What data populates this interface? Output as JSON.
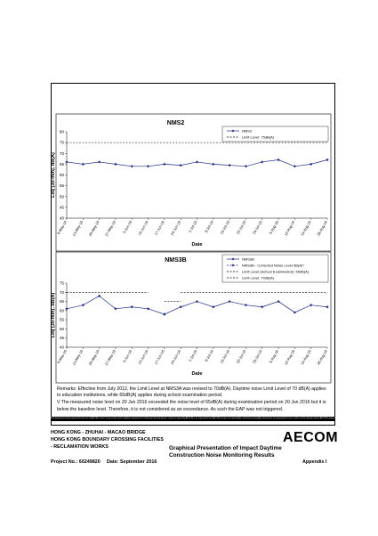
{
  "chart_data": [
    {
      "type": "line",
      "title": "NMS2",
      "x_label": "Date",
      "y_label": "Leq (30-min), dB(A)",
      "categories": [
        "6-May-16",
        "13-May-16",
        "20-May-16",
        "27-May-16",
        "3-Jun-16",
        "10-Jun-16",
        "17-Jun-16",
        "24-Jun-16",
        "1-Jul-16",
        "8-Jul-16",
        "15-Jul-16",
        "22-Jul-16",
        "29-Jul-16",
        "5-Aug-16",
        "12-Aug-16",
        "19-Aug-16",
        "26-Aug-16"
      ],
      "series": [
        {
          "name": "NMS2",
          "color": "#1f2a8a",
          "dashed": false,
          "marker": true,
          "values": [
            66,
            65,
            66,
            65,
            64,
            64,
            65,
            64.5,
            66,
            65,
            64.5,
            64,
            66,
            67,
            64,
            65,
            67
          ]
        },
        {
          "name": "Limit Level: 75dB(A)",
          "color": "#000000",
          "dashed": true,
          "marker": false,
          "values": [
            75,
            75,
            75,
            75,
            75,
            75,
            75,
            75,
            75,
            75,
            75,
            75,
            75,
            75,
            75,
            75,
            75
          ]
        }
      ],
      "ylim": [
        40,
        80
      ],
      "yticks": [
        40,
        45,
        50,
        55,
        60,
        65,
        70,
        75,
        80
      ]
    },
    {
      "type": "line",
      "title": "NMS3B",
      "x_label": "Date",
      "y_label": "Leq (30-min), dB(A)",
      "categories": [
        "6-May-16",
        "13-May-16",
        "20-May-16",
        "27-May-16",
        "3-Jun-16",
        "10-Jun-16",
        "17-Jun-16",
        "24-Jun-16",
        "1-Jul-16",
        "8-Jul-16",
        "15-Jul-16",
        "22-Jul-16",
        "29-Jul-16",
        "5-Aug-16",
        "12-Aug-16",
        "19-Aug-16",
        "26-Aug-16"
      ],
      "series": [
        {
          "name": "NMS3B",
          "color": "#1f2a8a",
          "dashed": false,
          "marker": true,
          "values": [
            61,
            63,
            68,
            61,
            62,
            61,
            58,
            62,
            65,
            62,
            65,
            63,
            62,
            65,
            59,
            63,
            62
          ]
        },
        {
          "name": "NMS3B - Corrected Noise Level dB(A)*",
          "color": "#1f2a8a",
          "dashed": true,
          "marker": true,
          "values": [
            null,
            null,
            null,
            null,
            null,
            null,
            58,
            null,
            null,
            null,
            null,
            null,
            null,
            null,
            null,
            null,
            null
          ]
        },
        {
          "name": "Limit Level (School Examination): 65dB(A)",
          "color": "#000000",
          "dashed": true,
          "marker": false,
          "values": [
            null,
            null,
            null,
            null,
            null,
            null,
            65,
            65,
            null,
            null,
            null,
            null,
            null,
            null,
            null,
            null,
            null
          ]
        },
        {
          "name": "Limit Level: 70dB(A)",
          "color": "#000000",
          "dashed": true,
          "marker": false,
          "values": [
            70,
            70,
            70,
            70,
            70,
            70,
            null,
            70,
            70,
            70,
            70,
            70,
            70,
            70,
            70,
            70,
            70
          ]
        }
      ],
      "ylim": [
        40,
        75
      ],
      "yticks": [
        40,
        45,
        50,
        55,
        60,
        65,
        70,
        75
      ]
    }
  ],
  "remarks": [
    "Remarks: Effective from July 2012, the Limit Level at NMS3A was revised to 70dB(A). Daytime noise Limit Level of 70 dB(A) applies to education institutions, while 65dB(A) applies during school examination period.",
    "V The measured noise level on 20 Jun 2016 exceeded the noise level of 65dB(A) during examination period on 20 Jun 2016 but it is below the baseline level. Therefore, it is not considered as an exceedance. As such the EAP was not triggered."
  ],
  "disclaimer": "This drawing has been prepared for the use of AECOM's client. It may not be used, modified, reproduced or relied upon by third parties, except as agreed by AECOM or as required by law. AECOM accepts no responsibility, and denies any liability whatsoever, to any party that uses or relies on this drawing without AECOM's express written consent.",
  "footer": {
    "project_line1": "HONG KONG - ZHUHAI - MACAO BRIDGE",
    "project_line2": "HONG KONG BOUNDARY CROSSING FACILITIES",
    "project_line3": "- RECLAMATION WORKS",
    "title_line1": "Graphical Presentation of Impact Daytime",
    "title_line2": "Construction Noise Monitoring Results",
    "logo": "AECOM",
    "project_no": "Project No.: 60249820",
    "date": "Date: September 2016",
    "appendix": "Appendix I"
  }
}
